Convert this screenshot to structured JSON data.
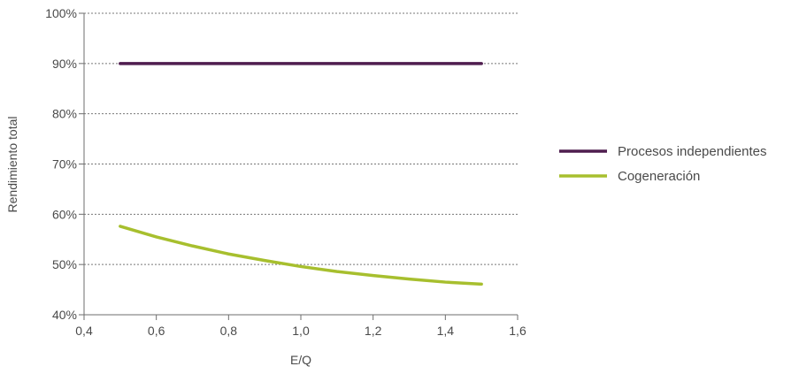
{
  "chart_data": {
    "type": "line",
    "title": "",
    "xlabel": "E/Q",
    "ylabel": "Rendimiento total",
    "xlim": [
      0.4,
      1.6
    ],
    "ylim": [
      40,
      100
    ],
    "x_ticks": [
      "0,4",
      "0,6",
      "0,8",
      "1,0",
      "1,2",
      "1,4",
      "1,6"
    ],
    "y_ticks": [
      "40%",
      "50%",
      "60%",
      "70%",
      "80%",
      "90%",
      "100%"
    ],
    "grid": "horizontal-dotted",
    "legend_position": "right",
    "series": [
      {
        "name": "Procesos independientes",
        "color": "#4f1d4f",
        "x": [
          0.5,
          0.6,
          0.7,
          0.8,
          0.9,
          1.0,
          1.1,
          1.2,
          1.3,
          1.4,
          1.5
        ],
        "y": [
          90,
          90,
          90,
          90,
          90,
          90,
          90,
          90,
          90,
          90,
          90
        ]
      },
      {
        "name": "Cogeneración",
        "color": "#a7bf2e",
        "x": [
          0.5,
          0.6,
          0.7,
          0.8,
          0.9,
          1.0,
          1.1,
          1.2,
          1.3,
          1.4,
          1.5
        ],
        "y": [
          57.6,
          55.5,
          53.7,
          52.1,
          50.8,
          49.6,
          48.6,
          47.8,
          47.1,
          46.5,
          46.1
        ]
      }
    ]
  }
}
